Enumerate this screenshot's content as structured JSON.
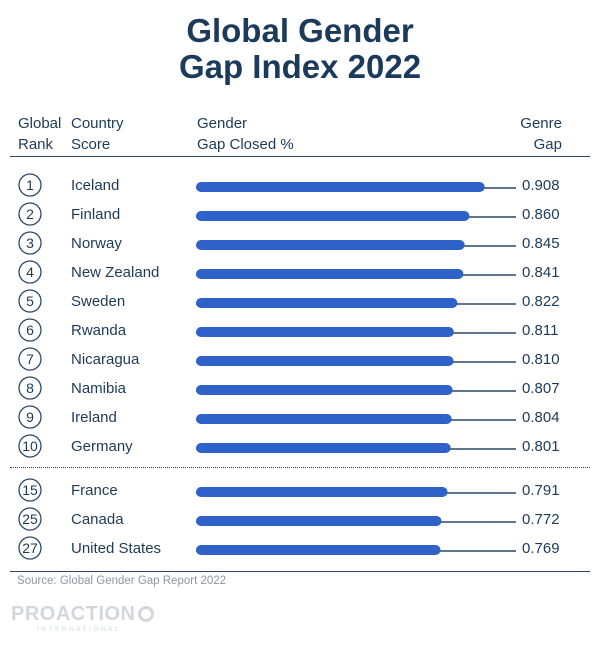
{
  "title_line1": "Global Gender",
  "title_line2": "Gap Index 2022",
  "headers": {
    "rank_l1": "Global",
    "rank_l2": "Rank",
    "country_l1": "Country",
    "country_l2": "Score",
    "gap_l1": "Gender",
    "gap_l2": "Gap Closed %",
    "score_l1": "Genre",
    "score_l2": "Gap"
  },
  "source": "Source: Global Gender Gap Report 2022",
  "logo": {
    "name": "PROACTION",
    "sub": "INTERNATIONAL"
  },
  "colors": {
    "bar": "#2e62c9",
    "title": "#1b3a5c",
    "text": "#1d3a57",
    "line": "#2a4866"
  },
  "chart_data": {
    "type": "bar",
    "orientation": "horizontal",
    "categories": [
      "Iceland",
      "Finland",
      "Norway",
      "New Zealand",
      "Sweden",
      "Rwanda",
      "Nicaragua",
      "Namibia",
      "Ireland",
      "Germany",
      "France",
      "Canada",
      "United States"
    ],
    "ranks": [
      "1",
      "2",
      "3",
      "4",
      "5",
      "6",
      "7",
      "8",
      "9",
      "10",
      "15",
      "25",
      "27"
    ],
    "values": [
      0.908,
      0.86,
      0.845,
      0.841,
      0.822,
      0.811,
      0.81,
      0.807,
      0.804,
      0.801,
      0.791,
      0.772,
      0.769
    ],
    "value_labels": [
      "0.908",
      "0.860",
      "0.845",
      "0.841",
      "0.822",
      "0.811",
      "0.810",
      "0.807",
      "0.804",
      "0.801",
      "0.791",
      "0.772",
      "0.769"
    ],
    "groups": [
      [
        0,
        9
      ],
      [
        10,
        12
      ]
    ]
  }
}
